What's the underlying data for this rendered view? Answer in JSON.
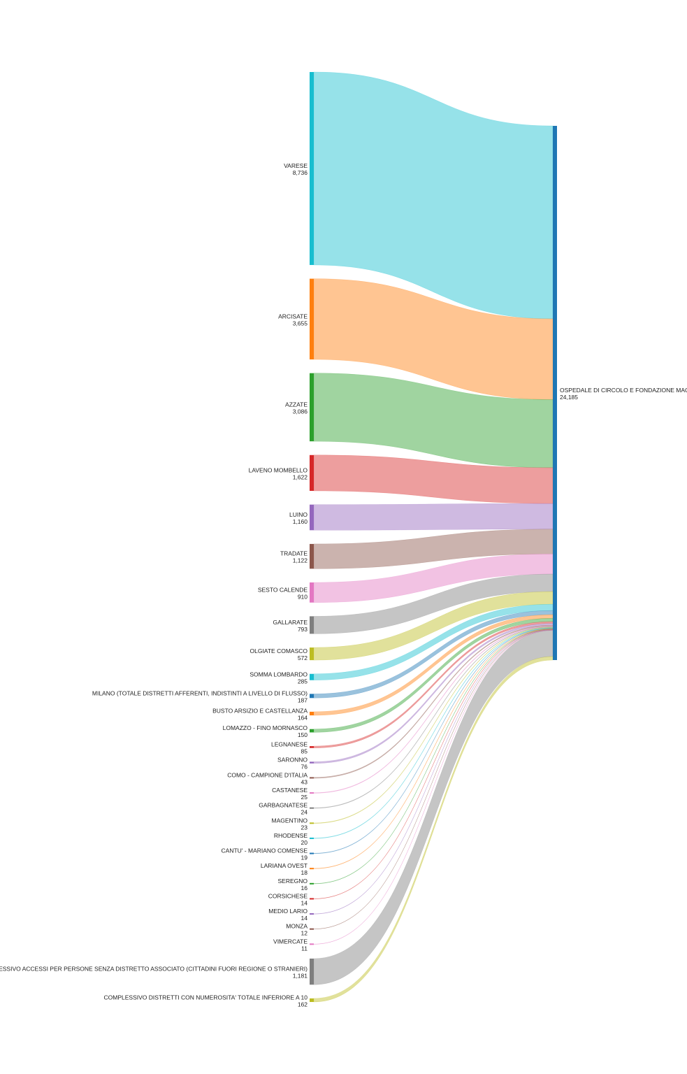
{
  "chart_data": {
    "type": "sankey",
    "target": {
      "name": "OSPEDALE DI CIRCOLO E FONDAZIONE MACCHI",
      "value_label": "24,185",
      "color": "#1f77b4"
    },
    "sources": [
      {
        "name": "VARESE",
        "value": 8736,
        "value_label": "8,736",
        "color": "#17becf"
      },
      {
        "name": "ARCISATE",
        "value": 3655,
        "value_label": "3,655",
        "color": "#ff7f0e"
      },
      {
        "name": "AZZATE",
        "value": 3086,
        "value_label": "3,086",
        "color": "#2ca02c"
      },
      {
        "name": "LAVENO MOMBELLO",
        "value": 1622,
        "value_label": "1,622",
        "color": "#d62728"
      },
      {
        "name": "LUINO",
        "value": 1160,
        "value_label": "1,160",
        "color": "#9467bd"
      },
      {
        "name": "TRADATE",
        "value": 1122,
        "value_label": "1,122",
        "color": "#8c564b"
      },
      {
        "name": "SESTO CALENDE",
        "value": 910,
        "value_label": "910",
        "color": "#e377c2"
      },
      {
        "name": "GALLARATE",
        "value": 793,
        "value_label": "793",
        "color": "#7f7f7f"
      },
      {
        "name": "OLGIATE COMASCO",
        "value": 572,
        "value_label": "572",
        "color": "#bcbd22"
      },
      {
        "name": "SOMMA LOMBARDO",
        "value": 285,
        "value_label": "285",
        "color": "#17becf"
      },
      {
        "name": "MILANO (TOTALE DISTRETTI AFFERENTI, INDISTINTI A LIVELLO DI FLUSSO)",
        "value": 187,
        "value_label": "187",
        "color": "#1f77b4"
      },
      {
        "name": "BUSTO ARSIZIO E CASTELLANZA",
        "value": 164,
        "value_label": "164",
        "color": "#ff7f0e"
      },
      {
        "name": "LOMAZZO - FINO MORNASCO",
        "value": 150,
        "value_label": "150",
        "color": "#2ca02c"
      },
      {
        "name": "LEGNANESE",
        "value": 85,
        "value_label": "85",
        "color": "#d62728"
      },
      {
        "name": "SARONNO",
        "value": 76,
        "value_label": "76",
        "color": "#9467bd"
      },
      {
        "name": "COMO - CAMPIONE D'ITALIA",
        "value": 43,
        "value_label": "43",
        "color": "#8c564b"
      },
      {
        "name": "CASTANESE",
        "value": 25,
        "value_label": "25",
        "color": "#e377c2"
      },
      {
        "name": "GARBAGNATESE",
        "value": 24,
        "value_label": "24",
        "color": "#7f7f7f"
      },
      {
        "name": "MAGENTINO",
        "value": 23,
        "value_label": "23",
        "color": "#bcbd22"
      },
      {
        "name": "RHODENSE",
        "value": 20,
        "value_label": "20",
        "color": "#17becf"
      },
      {
        "name": "CANTU' - MARIANO COMENSE",
        "value": 19,
        "value_label": "19",
        "color": "#1f77b4"
      },
      {
        "name": "LARIANA OVEST",
        "value": 18,
        "value_label": "18",
        "color": "#ff7f0e"
      },
      {
        "name": "SEREGNO",
        "value": 16,
        "value_label": "16",
        "color": "#2ca02c"
      },
      {
        "name": "CORSICHESE",
        "value": 14,
        "value_label": "14",
        "color": "#d62728"
      },
      {
        "name": "MEDIO LARIO",
        "value": 14,
        "value_label": "14",
        "color": "#9467bd"
      },
      {
        "name": "MONZA",
        "value": 12,
        "value_label": "12",
        "color": "#8c564b"
      },
      {
        "name": "VIMERCATE",
        "value": 11,
        "value_label": "11",
        "color": "#e377c2"
      },
      {
        "name": "DATO COMPLESSIVO ACCESSI PER PERSONE SENZA DISTRETTO ASSOCIATO (CITTADINI FUORI REGIONE O STRANIERI)",
        "value": 1181,
        "value_label": "1,181",
        "color": "#7f7f7f"
      },
      {
        "name": "COMPLESSIVO DISTRETTI CON NUMEROSITA' TOTALE INFERIORE A 10",
        "value": 162,
        "value_label": "162",
        "color": "#bcbd22"
      }
    ]
  }
}
